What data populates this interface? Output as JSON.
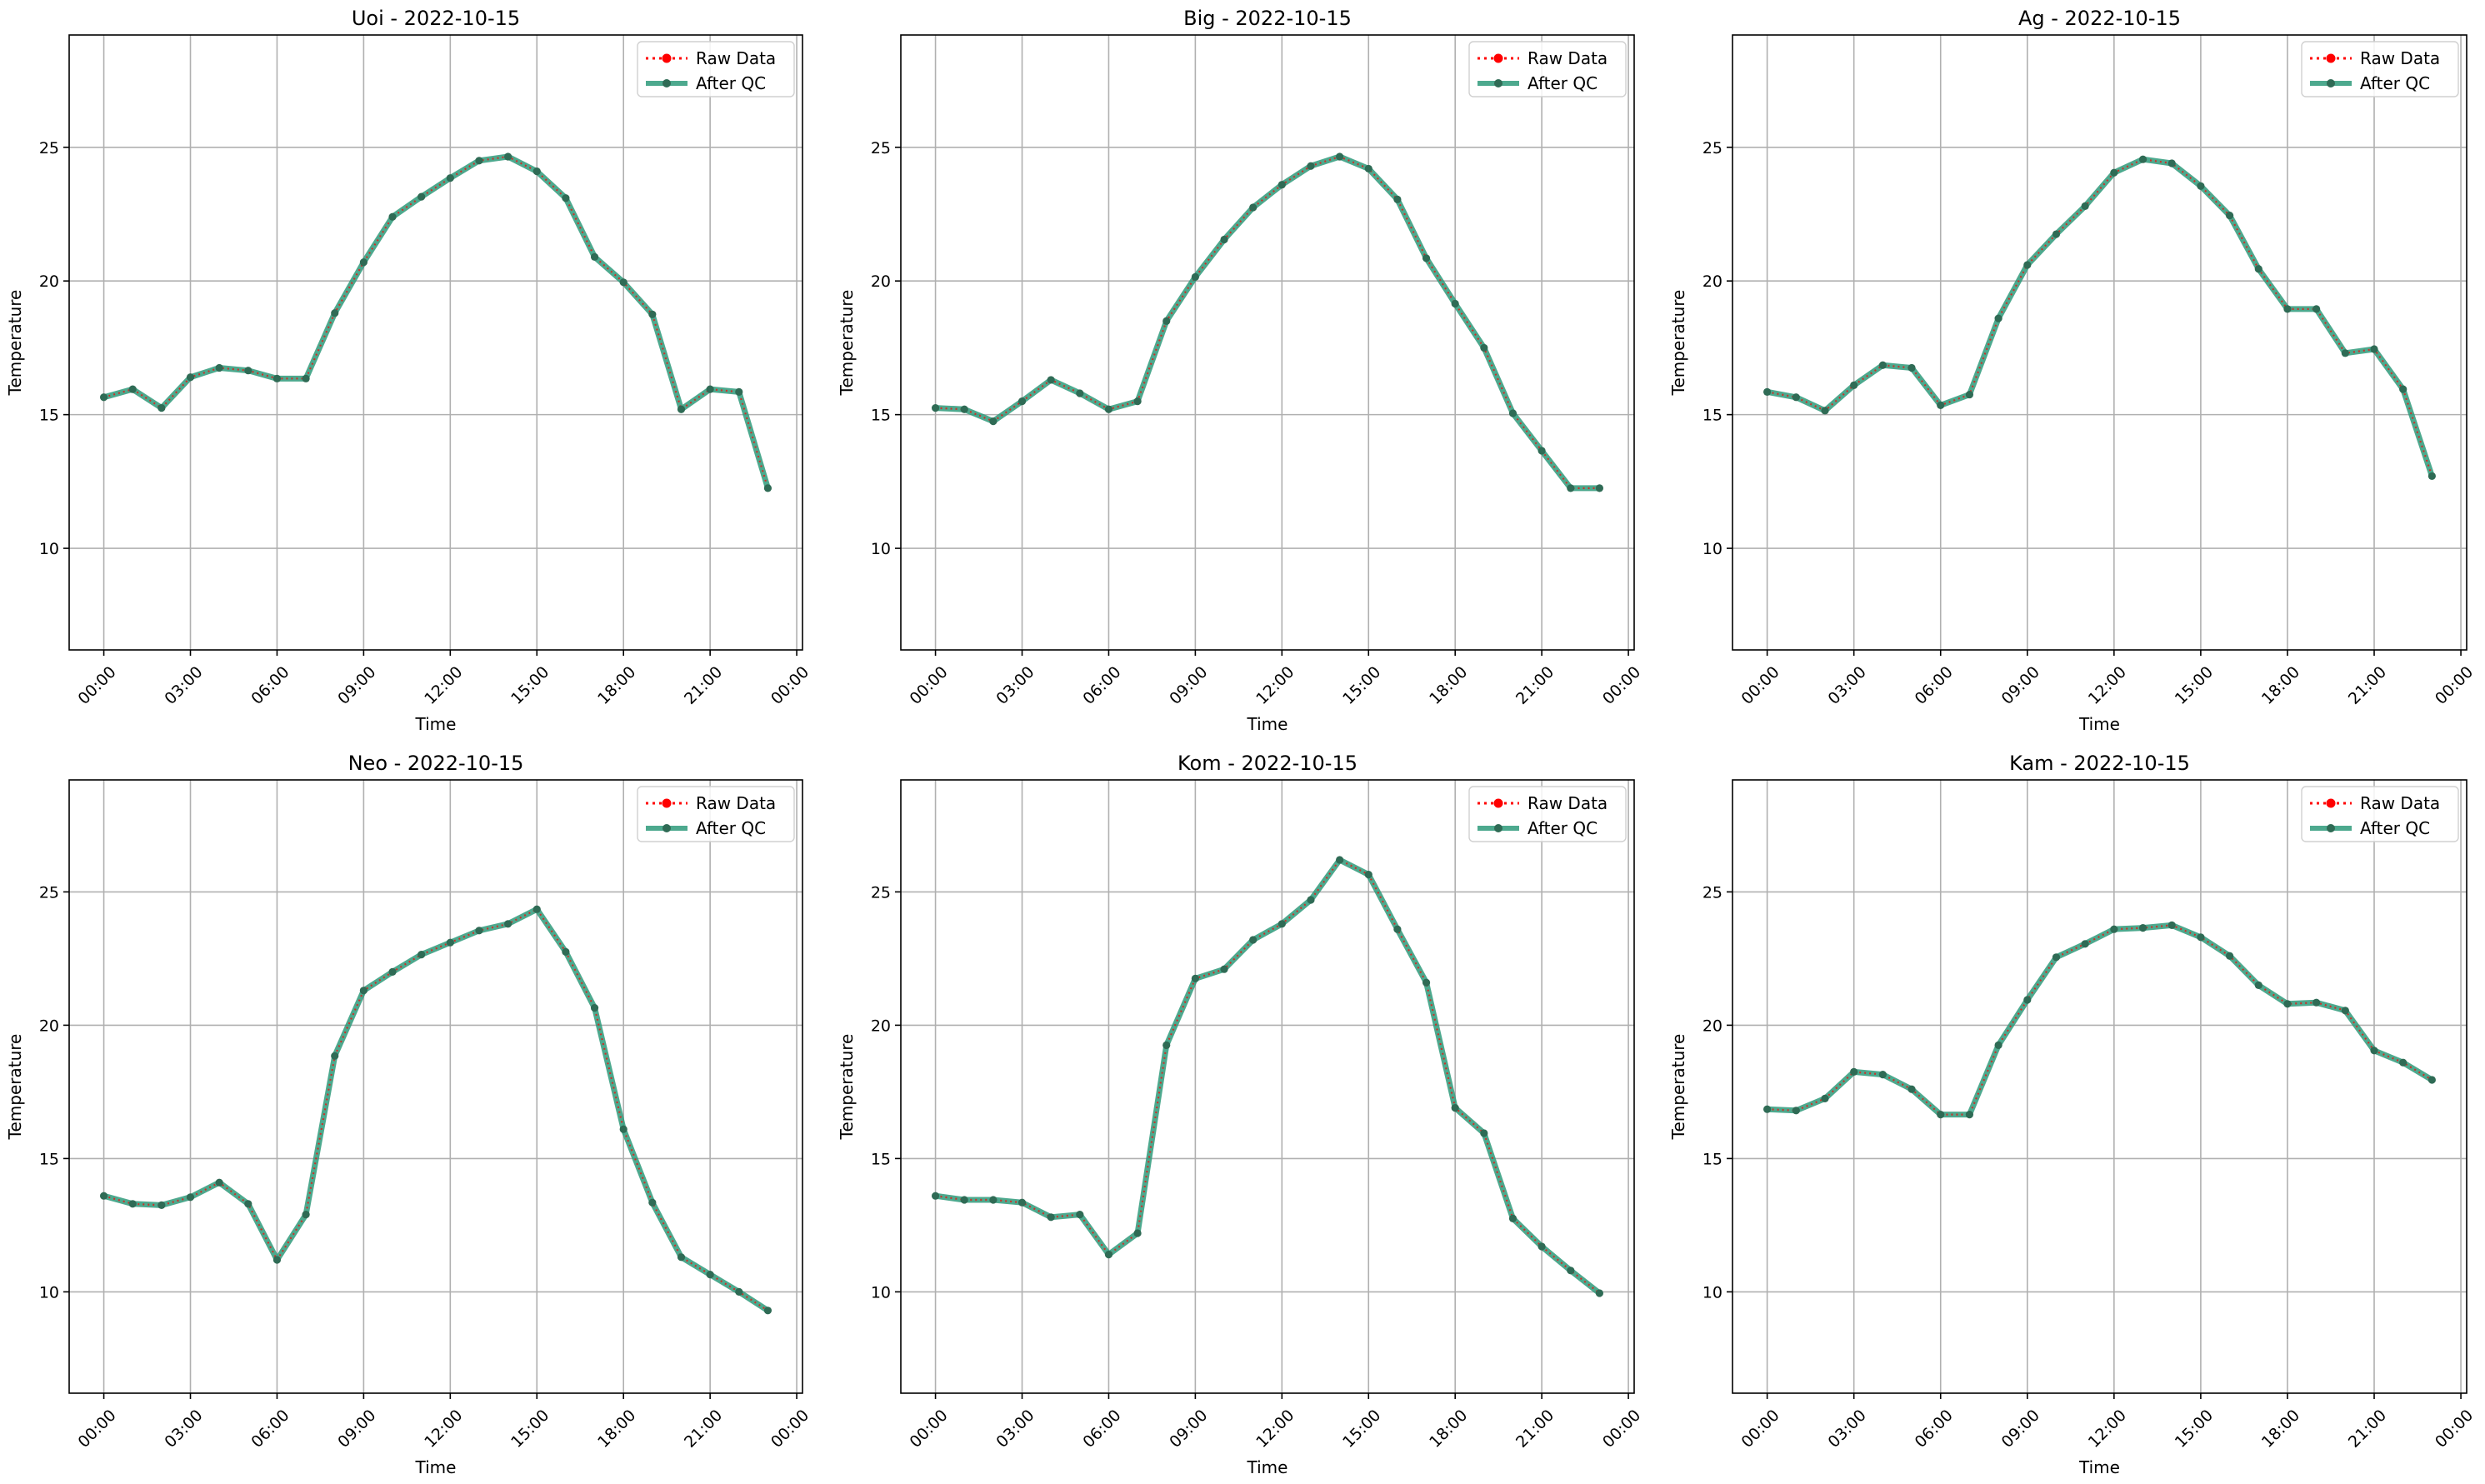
{
  "legend": {
    "raw_label": "Raw Data",
    "qc_label": "After QC"
  },
  "colors": {
    "raw": "#ff0000",
    "qc": "#2e9a7a",
    "grid": "#b0b0b0",
    "marker_dark": "#2f6b55"
  },
  "chart_data": [
    {
      "type": "line",
      "title": "Uoi - 2022-10-15",
      "xlabel": "Time",
      "ylabel": "Temperature",
      "x_unit": "hour",
      "x_tick_labels": [
        "00:00",
        "03:00",
        "06:00",
        "09:00",
        "12:00",
        "15:00",
        "18:00",
        "21:00",
        "00:00"
      ],
      "x_range": [
        0,
        24
      ],
      "y_ticks": [
        10,
        15,
        20,
        25
      ],
      "ylim": [
        6.2,
        29.2
      ],
      "grid": true,
      "legend_position": "upper right",
      "x": [
        0,
        1,
        2,
        3,
        4,
        5,
        6,
        7,
        8,
        9,
        10,
        11,
        12,
        13,
        14,
        15,
        16,
        17,
        18,
        19,
        20,
        21,
        22,
        23
      ],
      "series": [
        {
          "name": "Raw Data",
          "values": [
            15.65,
            15.95,
            15.25,
            16.4,
            16.75,
            16.65,
            16.35,
            16.35,
            18.8,
            20.7,
            22.4,
            23.15,
            23.85,
            24.5,
            24.65,
            24.1,
            23.1,
            20.9,
            19.95,
            18.75,
            15.2,
            15.95,
            15.85,
            12.25
          ]
        },
        {
          "name": "After QC",
          "values": [
            15.65,
            15.95,
            15.25,
            16.4,
            16.75,
            16.65,
            16.35,
            16.35,
            18.8,
            20.7,
            22.4,
            23.15,
            23.85,
            24.5,
            24.65,
            24.1,
            23.1,
            20.9,
            19.95,
            18.75,
            15.2,
            15.95,
            15.85,
            12.25
          ]
        }
      ]
    },
    {
      "type": "line",
      "title": "Big - 2022-10-15",
      "xlabel": "Time",
      "ylabel": "Temperature",
      "x_unit": "hour",
      "x_tick_labels": [
        "00:00",
        "03:00",
        "06:00",
        "09:00",
        "12:00",
        "15:00",
        "18:00",
        "21:00",
        "00:00"
      ],
      "x_range": [
        0,
        24
      ],
      "y_ticks": [
        10,
        15,
        20,
        25
      ],
      "ylim": [
        6.2,
        29.2
      ],
      "grid": true,
      "legend_position": "upper right",
      "x": [
        0,
        1,
        2,
        3,
        4,
        5,
        6,
        7,
        8,
        9,
        10,
        11,
        12,
        13,
        14,
        15,
        16,
        17,
        18,
        19,
        20,
        21,
        22,
        23
      ],
      "series": [
        {
          "name": "Raw Data",
          "values": [
            15.25,
            15.2,
            14.75,
            15.5,
            16.3,
            15.8,
            15.2,
            15.5,
            18.5,
            20.15,
            21.55,
            22.75,
            23.6,
            24.3,
            24.65,
            24.2,
            23.05,
            20.85,
            19.15,
            17.5,
            15.05,
            13.65,
            12.25,
            12.25
          ]
        },
        {
          "name": "After QC",
          "values": [
            15.25,
            15.2,
            14.75,
            15.5,
            16.3,
            15.8,
            15.2,
            15.5,
            18.5,
            20.15,
            21.55,
            22.75,
            23.6,
            24.3,
            24.65,
            24.2,
            23.05,
            20.85,
            19.15,
            17.5,
            15.05,
            13.65,
            12.25,
            12.25
          ]
        }
      ]
    },
    {
      "type": "line",
      "title": "Ag - 2022-10-15",
      "xlabel": "Time",
      "ylabel": "Temperature",
      "x_unit": "hour",
      "x_tick_labels": [
        "00:00",
        "03:00",
        "06:00",
        "09:00",
        "12:00",
        "15:00",
        "18:00",
        "21:00",
        "00:00"
      ],
      "x_range": [
        0,
        24
      ],
      "y_ticks": [
        10,
        15,
        20,
        25
      ],
      "ylim": [
        6.2,
        29.2
      ],
      "grid": true,
      "legend_position": "upper right",
      "x": [
        0,
        1,
        2,
        3,
        4,
        5,
        6,
        7,
        8,
        9,
        10,
        11,
        12,
        13,
        14,
        15,
        16,
        17,
        18,
        19,
        20,
        21,
        22,
        23
      ],
      "series": [
        {
          "name": "Raw Data",
          "values": [
            15.85,
            15.65,
            15.15,
            16.1,
            16.85,
            16.75,
            15.35,
            15.75,
            18.6,
            20.6,
            21.75,
            22.8,
            24.05,
            24.55,
            24.4,
            23.55,
            22.45,
            20.45,
            18.95,
            18.95,
            17.3,
            17.45,
            15.95,
            12.7
          ]
        },
        {
          "name": "After QC",
          "values": [
            15.85,
            15.65,
            15.15,
            16.1,
            16.85,
            16.75,
            15.35,
            15.75,
            18.6,
            20.6,
            21.75,
            22.8,
            24.05,
            24.55,
            24.4,
            23.55,
            22.45,
            20.45,
            18.95,
            18.95,
            17.3,
            17.45,
            15.95,
            12.7
          ]
        }
      ]
    },
    {
      "type": "line",
      "title": "Neo - 2022-10-15",
      "xlabel": "Time",
      "ylabel": "Temperature",
      "x_unit": "hour",
      "x_tick_labels": [
        "00:00",
        "03:00",
        "06:00",
        "09:00",
        "12:00",
        "15:00",
        "18:00",
        "21:00",
        "00:00"
      ],
      "x_range": [
        0,
        24
      ],
      "y_ticks": [
        10,
        15,
        20,
        25
      ],
      "ylim": [
        6.2,
        29.2
      ],
      "grid": true,
      "legend_position": "upper right",
      "x": [
        0,
        1,
        2,
        3,
        4,
        5,
        6,
        7,
        8,
        9,
        10,
        11,
        12,
        13,
        14,
        15,
        16,
        17,
        18,
        19,
        20,
        21,
        22,
        23
      ],
      "series": [
        {
          "name": "Raw Data",
          "values": [
            13.6,
            13.3,
            13.25,
            13.55,
            14.1,
            13.3,
            11.2,
            12.9,
            18.85,
            21.3,
            22.0,
            22.65,
            23.1,
            23.55,
            23.8,
            24.35,
            22.75,
            20.65,
            16.1,
            13.35,
            11.3,
            10.65,
            10.0,
            9.3
          ]
        },
        {
          "name": "After QC",
          "values": [
            13.6,
            13.3,
            13.25,
            13.55,
            14.1,
            13.3,
            11.2,
            12.9,
            18.85,
            21.3,
            22.0,
            22.65,
            23.1,
            23.55,
            23.8,
            24.35,
            22.75,
            20.65,
            16.1,
            13.35,
            11.3,
            10.65,
            10.0,
            9.3
          ]
        }
      ]
    },
    {
      "type": "line",
      "title": "Kom - 2022-10-15",
      "xlabel": "Time",
      "ylabel": "Temperature",
      "x_unit": "hour",
      "x_tick_labels": [
        "00:00",
        "03:00",
        "06:00",
        "09:00",
        "12:00",
        "15:00",
        "18:00",
        "21:00",
        "00:00"
      ],
      "x_range": [
        0,
        24
      ],
      "y_ticks": [
        10,
        15,
        20,
        25
      ],
      "ylim": [
        6.2,
        29.2
      ],
      "grid": true,
      "legend_position": "upper right",
      "x": [
        0,
        1,
        2,
        3,
        4,
        5,
        6,
        7,
        8,
        9,
        10,
        11,
        12,
        13,
        14,
        15,
        16,
        17,
        18,
        19,
        20,
        21,
        22,
        23
      ],
      "series": [
        {
          "name": "Raw Data",
          "values": [
            13.6,
            13.45,
            13.45,
            13.35,
            12.8,
            12.9,
            11.4,
            12.2,
            19.25,
            21.75,
            22.1,
            23.2,
            23.8,
            24.7,
            26.2,
            25.65,
            23.6,
            21.6,
            16.9,
            15.95,
            12.75,
            11.7,
            10.8,
            9.95
          ]
        },
        {
          "name": "After QC",
          "values": [
            13.6,
            13.45,
            13.45,
            13.35,
            12.8,
            12.9,
            11.4,
            12.2,
            19.25,
            21.75,
            22.1,
            23.2,
            23.8,
            24.7,
            26.2,
            25.65,
            23.6,
            21.6,
            16.9,
            15.95,
            12.75,
            11.7,
            10.8,
            9.95
          ]
        }
      ]
    },
    {
      "type": "line",
      "title": "Kam - 2022-10-15",
      "xlabel": "Time",
      "ylabel": "Temperature",
      "x_unit": "hour",
      "x_tick_labels": [
        "00:00",
        "03:00",
        "06:00",
        "09:00",
        "12:00",
        "15:00",
        "18:00",
        "21:00",
        "00:00"
      ],
      "x_range": [
        0,
        24
      ],
      "y_ticks": [
        10,
        15,
        20,
        25
      ],
      "ylim": [
        6.2,
        29.2
      ],
      "grid": true,
      "legend_position": "upper right",
      "x": [
        0,
        1,
        2,
        3,
        4,
        5,
        6,
        7,
        8,
        9,
        10,
        11,
        12,
        13,
        14,
        15,
        16,
        17,
        18,
        19,
        20,
        21,
        22,
        23
      ],
      "series": [
        {
          "name": "Raw Data",
          "values": [
            16.85,
            16.8,
            17.25,
            18.25,
            18.15,
            17.6,
            16.65,
            16.65,
            19.25,
            20.95,
            22.55,
            23.05,
            23.6,
            23.65,
            23.75,
            23.3,
            22.6,
            21.5,
            20.8,
            20.85,
            20.55,
            19.05,
            18.6,
            17.95
          ]
        },
        {
          "name": "After QC",
          "values": [
            16.85,
            16.8,
            17.25,
            18.25,
            18.15,
            17.6,
            16.65,
            16.65,
            19.25,
            20.95,
            22.55,
            23.05,
            23.6,
            23.65,
            23.75,
            23.3,
            22.6,
            21.5,
            20.8,
            20.85,
            20.55,
            19.05,
            18.6,
            17.95
          ]
        }
      ]
    }
  ]
}
